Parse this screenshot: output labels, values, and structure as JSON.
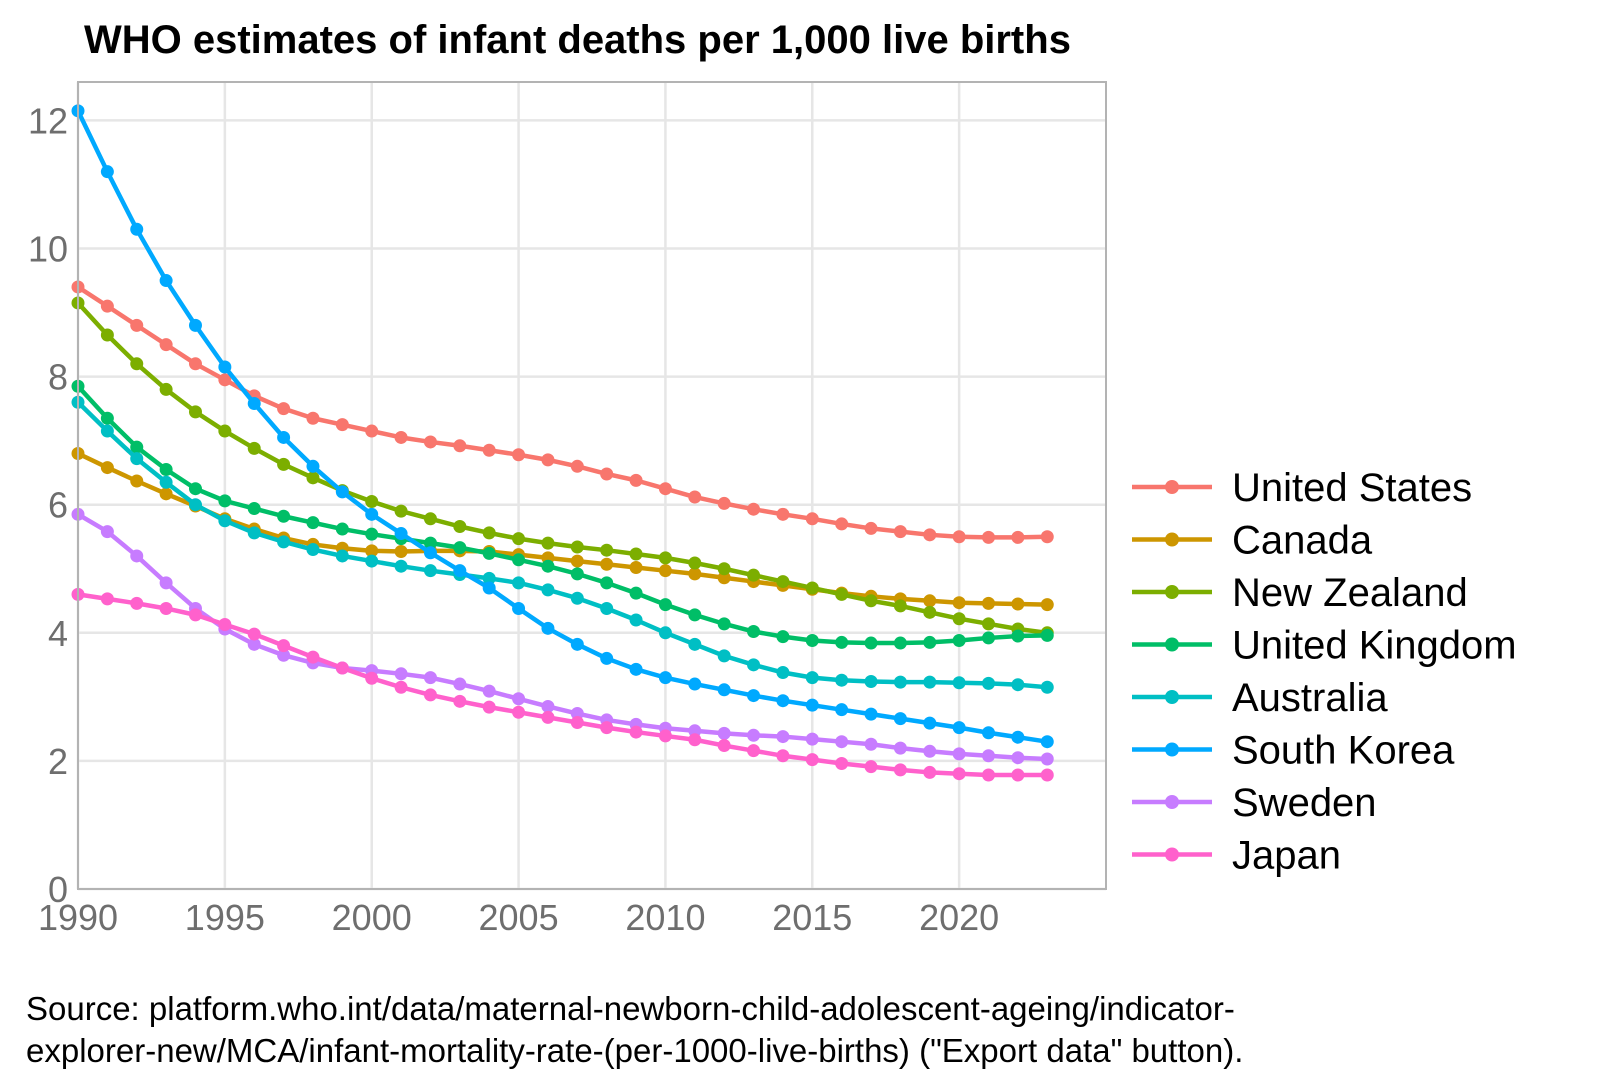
{
  "chart_data": {
    "type": "line",
    "title": "WHO estimates of infant deaths per 1,000 live births",
    "xlabel": "",
    "ylabel": "",
    "xlim": [
      1990,
      2025
    ],
    "ylim": [
      0,
      12.6
    ],
    "x_ticks": [
      "1990",
      "1995",
      "2000",
      "2005",
      "2010",
      "2015",
      "2020"
    ],
    "y_ticks": [
      "0",
      "2",
      "4",
      "6",
      "8",
      "10",
      "12"
    ],
    "grid": true,
    "legend_position": "right",
    "x": [
      1990,
      1991,
      1992,
      1993,
      1994,
      1995,
      1996,
      1997,
      1998,
      1999,
      2000,
      2001,
      2002,
      2003,
      2004,
      2005,
      2006,
      2007,
      2008,
      2009,
      2010,
      2011,
      2012,
      2013,
      2014,
      2015,
      2016,
      2017,
      2018,
      2019,
      2020,
      2021,
      2022,
      2023
    ],
    "series": [
      {
        "name": "United States",
        "color": "#F8766D",
        "values": [
          9.4,
          9.1,
          8.8,
          8.5,
          8.2,
          7.95,
          7.7,
          7.5,
          7.35,
          7.25,
          7.15,
          7.05,
          6.98,
          6.92,
          6.85,
          6.78,
          6.7,
          6.6,
          6.48,
          6.38,
          6.25,
          6.12,
          6.02,
          5.93,
          5.85,
          5.78,
          5.7,
          5.63,
          5.58,
          5.53,
          5.5,
          5.49,
          5.49,
          5.5
        ]
      },
      {
        "name": "Canada",
        "color": "#CD9600",
        "values": [
          6.8,
          6.58,
          6.37,
          6.17,
          5.98,
          5.78,
          5.62,
          5.48,
          5.38,
          5.32,
          5.28,
          5.27,
          5.28,
          5.28,
          5.27,
          5.22,
          5.17,
          5.12,
          5.07,
          5.02,
          4.97,
          4.92,
          4.86,
          4.8,
          4.74,
          4.68,
          4.62,
          4.57,
          4.53,
          4.5,
          4.47,
          4.46,
          4.45,
          4.44
        ]
      },
      {
        "name": "New Zealand",
        "color": "#7CAE00",
        "values": [
          9.15,
          8.65,
          8.2,
          7.8,
          7.45,
          7.15,
          6.88,
          6.63,
          6.42,
          6.22,
          6.05,
          5.9,
          5.78,
          5.66,
          5.56,
          5.47,
          5.4,
          5.34,
          5.29,
          5.23,
          5.17,
          5.09,
          5.0,
          4.9,
          4.8,
          4.7,
          4.6,
          4.5,
          4.42,
          4.32,
          4.22,
          4.14,
          4.06,
          4.0
        ]
      },
      {
        "name": "United Kingdom",
        "color": "#00BE67",
        "values": [
          7.85,
          7.35,
          6.9,
          6.55,
          6.25,
          6.06,
          5.94,
          5.82,
          5.72,
          5.62,
          5.54,
          5.47,
          5.4,
          5.33,
          5.24,
          5.14,
          5.04,
          4.92,
          4.78,
          4.62,
          4.44,
          4.28,
          4.14,
          4.02,
          3.94,
          3.88,
          3.85,
          3.84,
          3.84,
          3.85,
          3.88,
          3.92,
          3.95,
          3.96
        ]
      },
      {
        "name": "Australia",
        "color": "#00BFC4",
        "values": [
          7.6,
          7.15,
          6.72,
          6.35,
          6.0,
          5.75,
          5.56,
          5.42,
          5.3,
          5.2,
          5.12,
          5.04,
          4.97,
          4.91,
          4.85,
          4.78,
          4.67,
          4.54,
          4.38,
          4.2,
          4.0,
          3.82,
          3.64,
          3.5,
          3.38,
          3.3,
          3.26,
          3.24,
          3.23,
          3.23,
          3.22,
          3.21,
          3.19,
          3.15
        ]
      },
      {
        "name": "South Korea",
        "color": "#00A9FF",
        "values": [
          12.15,
          11.2,
          10.3,
          9.5,
          8.8,
          8.15,
          7.58,
          7.05,
          6.6,
          6.2,
          5.85,
          5.55,
          5.25,
          4.97,
          4.7,
          4.38,
          4.07,
          3.82,
          3.6,
          3.43,
          3.3,
          3.2,
          3.11,
          3.02,
          2.94,
          2.87,
          2.8,
          2.73,
          2.66,
          2.59,
          2.52,
          2.44,
          2.37,
          2.3
        ]
      },
      {
        "name": "Sweden",
        "color": "#C77CFF",
        "values": [
          5.85,
          5.58,
          5.2,
          4.78,
          4.38,
          4.06,
          3.82,
          3.65,
          3.53,
          3.45,
          3.41,
          3.36,
          3.3,
          3.2,
          3.09,
          2.97,
          2.85,
          2.74,
          2.64,
          2.57,
          2.51,
          2.47,
          2.43,
          2.4,
          2.38,
          2.34,
          2.3,
          2.26,
          2.2,
          2.15,
          2.11,
          2.08,
          2.05,
          2.03
        ]
      },
      {
        "name": "Japan",
        "color": "#FF61CC",
        "values": [
          4.6,
          4.53,
          4.46,
          4.38,
          4.28,
          4.13,
          3.98,
          3.8,
          3.62,
          3.45,
          3.29,
          3.15,
          3.03,
          2.93,
          2.84,
          2.76,
          2.68,
          2.6,
          2.52,
          2.45,
          2.39,
          2.33,
          2.24,
          2.16,
          2.08,
          2.02,
          1.96,
          1.91,
          1.86,
          1.82,
          1.8,
          1.78,
          1.78,
          1.78
        ]
      }
    ]
  },
  "source": {
    "line1": "Source: platform.who.int/data/maternal-newborn-child-adolescent-ageing/indicator-",
    "line2": "explorer-new/MCA/infant-mortality-rate-(per-1000-live-births) (\"Export data\" button)."
  }
}
